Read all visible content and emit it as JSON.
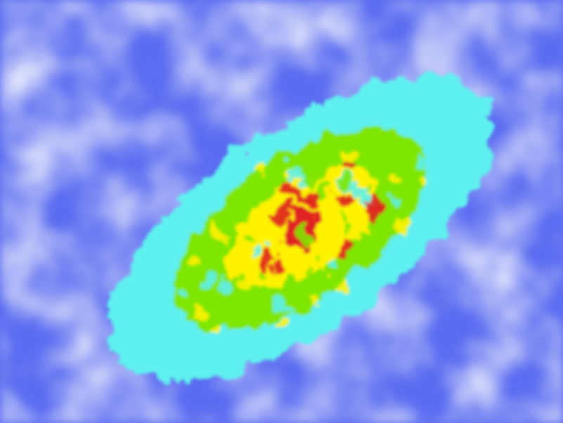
{
  "chart_data": {
    "type": "heatmap",
    "title": "",
    "xlabel": "",
    "ylabel": "",
    "grid": false,
    "legend": "none",
    "colorscale": [
      "#ffffff",
      "#5a6cf0",
      "#5ef0f0",
      "#7ee600",
      "#fff200",
      "#e02020"
    ],
    "density_levels": [
      0,
      0.3,
      0.5,
      0.7,
      0.9
    ],
    "contour_colors": [
      "#5a6cf0",
      "#5ef0f0",
      "#7ee600",
      "#fff200",
      "#e02020"
    ],
    "level_extents": [
      {
        "level": 0.0,
        "semi_major": 1.0,
        "semi_minor": 1.0
      },
      {
        "level": 0.3,
        "semi_major": 0.95,
        "semi_minor": 0.42
      },
      {
        "level": 0.5,
        "semi_major": 0.62,
        "semi_minor": 0.3
      },
      {
        "level": 0.7,
        "semi_major": 0.36,
        "semi_minor": 0.19
      },
      {
        "level": 0.9,
        "semi_major": 0.1,
        "semi_minor": 0.06
      }
    ],
    "center": [
      0.07,
      -0.08
    ],
    "orientation_deg": -35
  }
}
